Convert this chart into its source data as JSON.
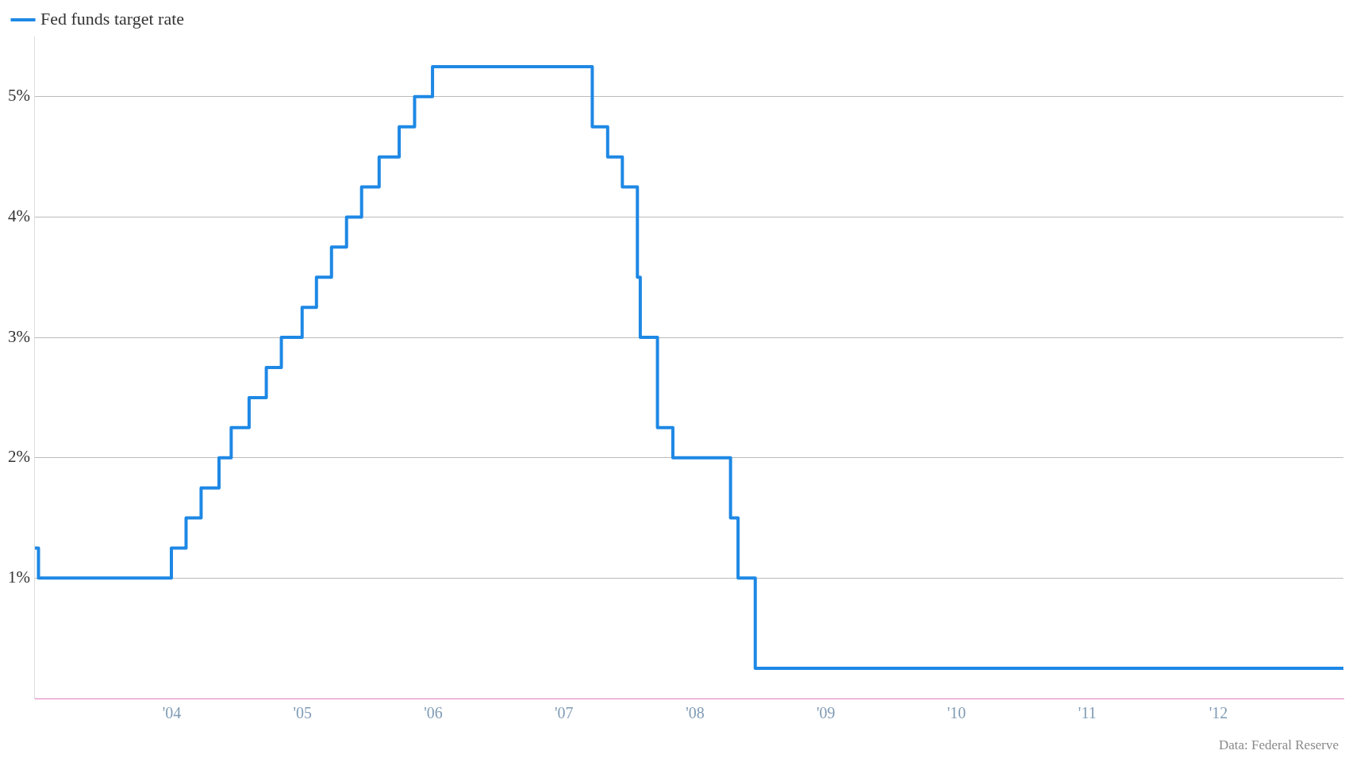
{
  "chart_data": {
    "type": "step",
    "x": [
      "2003-06-15",
      "2003-06-25",
      "2004-06-30",
      "2004-08-10",
      "2004-09-21",
      "2004-11-10",
      "2004-12-14",
      "2005-02-02",
      "2005-03-22",
      "2005-05-03",
      "2005-06-30",
      "2005-08-09",
      "2005-09-20",
      "2005-11-01",
      "2005-12-13",
      "2006-01-31",
      "2006-03-28",
      "2006-05-10",
      "2006-06-29",
      "2007-09-18",
      "2007-10-31",
      "2007-12-11",
      "2008-01-22",
      "2008-01-30",
      "2008-03-18",
      "2008-04-30",
      "2008-10-08",
      "2008-10-29",
      "2008-12-16",
      "2013-06-15"
    ],
    "series": [
      {
        "name": "Fed funds target rate",
        "color": "#1e88e5",
        "values": [
          1.25,
          1,
          1.25,
          1.5,
          1.75,
          2,
          2.25,
          2.5,
          2.75,
          3,
          3.25,
          3.5,
          3.75,
          4,
          4.25,
          4.5,
          4.75,
          5,
          5.25,
          4.75,
          4.5,
          4.25,
          3.5,
          3,
          2.25,
          2,
          1.5,
          1,
          0.25,
          0.25
        ]
      }
    ],
    "xlim": [
      "2003-06-15",
      "2013-06-15"
    ],
    "xticks": [
      {
        "value": "2004-07-01",
        "label": "'04"
      },
      {
        "value": "2005-07-01",
        "label": "'05"
      },
      {
        "value": "2006-07-01",
        "label": "'06"
      },
      {
        "value": "2007-07-01",
        "label": "'07"
      },
      {
        "value": "2008-07-01",
        "label": "'08"
      },
      {
        "value": "2009-07-01",
        "label": "'09"
      },
      {
        "value": "2010-07-01",
        "label": "'10"
      },
      {
        "value": "2011-07-01",
        "label": "'11"
      },
      {
        "value": "2012-07-01",
        "label": "'12"
      }
    ],
    "ylim": [
      0,
      5.5
    ],
    "yticks": [
      {
        "value": 1,
        "label": "1%"
      },
      {
        "value": 2,
        "label": "2%"
      },
      {
        "value": 3,
        "label": "3%"
      },
      {
        "value": 4,
        "label": "4%"
      },
      {
        "value": 5,
        "label": "5%"
      }
    ],
    "grid": "y",
    "legend": "top left",
    "marker": "none",
    "line_style": "solid",
    "annotations": [
      "Data: Federal Reserve"
    ]
  }
}
